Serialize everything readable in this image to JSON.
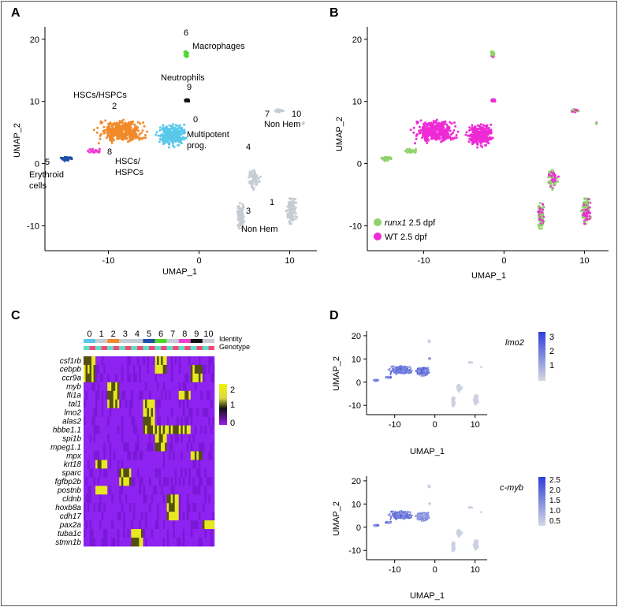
{
  "panels": {
    "a": {
      "letter": "A"
    },
    "b": {
      "letter": "B"
    },
    "c": {
      "letter": "C"
    },
    "d": {
      "letter": "D"
    }
  },
  "colors": {
    "hsc": "#f28a2a",
    "multipotent": "#5ac8ea",
    "neutrophil": "#111111",
    "macrophage": "#4fd82a",
    "erythroid": "#1f4fa8",
    "hspc8": "#ee3fd0",
    "nonhem": "#c5ccd4",
    "runx1": "#8fd36a",
    "wt": "#ee2ad6",
    "feature_high": "#2e3fd8",
    "feature_low": "#d4d8e4"
  },
  "annotations_a": {
    "c6": "6",
    "macrophages": "Macrophages",
    "neutrophils": "Neutrophils",
    "c9": "9",
    "hscs_hspcs": "HSCs/HSPCs",
    "c2": "2",
    "c0": "0",
    "multipotent_1": "Multipotent",
    "multipotent_2": "prog.",
    "c7": "7",
    "c10": "10",
    "nonhem_top": "Non Hem",
    "c4": "4",
    "c5": "5",
    "erythroid_1": "Erythroid",
    "erythroid_2": "cells",
    "c8": "8",
    "hspcs8_1": "HSCs/",
    "hspcs8_2": "HSPCs",
    "c1": "1",
    "c3": "3",
    "nonhem_bottom": "Non Hem"
  },
  "legend_b": [
    {
      "italic": "runx1",
      "rest": " 2.5 dpf",
      "color": "#8fd36a"
    },
    {
      "italic": "",
      "rest": "WT 2.5 dpf",
      "color": "#ee2ad6"
    }
  ],
  "heatmap": {
    "clusters": [
      "0",
      "1",
      "2",
      "3",
      "4",
      "5",
      "6",
      "7",
      "8",
      "9",
      "10"
    ],
    "identity_label": "Identity",
    "genotype_label": "Genotype",
    "genes": [
      "csf1rb",
      "cebpb",
      "ccr9a",
      "myb",
      "fli1a",
      "tal1",
      "lmo2",
      "alas2",
      "hbbe1.1",
      "spi1b",
      "mpeg1.1",
      "mpx",
      "krt18",
      "sparc",
      "fgfbp2b",
      "postnb",
      "cldnb",
      "hoxb8a",
      "cdh17",
      "pax2a",
      "tuba1c",
      "stmn1b"
    ],
    "scale_ticks": [
      "2",
      "1",
      "0"
    ]
  },
  "panel_d": {
    "top_gene": "lmo2",
    "top_ticks": [
      "3",
      "2",
      "1"
    ],
    "bottom_gene": "c-myb",
    "bottom_ticks": [
      "2.5",
      "2.0",
      "1.5",
      "1.0",
      "0.5"
    ]
  },
  "chart_data": [
    {
      "id": "A",
      "type": "scatter",
      "title": "",
      "xlabel": "UMAP_1",
      "ylabel": "UMAP_2",
      "xlim": [
        -17,
        13
      ],
      "ylim": [
        -14,
        22
      ],
      "xticks": [
        "-10",
        "0",
        "10"
      ],
      "yticks": [
        "20",
        "10",
        "0",
        "-10"
      ],
      "clusters": [
        {
          "id": "0",
          "label": "Multipotent prog.",
          "center": [
            -2.5,
            5.5
          ]
        },
        {
          "id": "1",
          "label": "Non Hem",
          "center": [
            10,
            -8
          ]
        },
        {
          "id": "2",
          "label": "HSCs/HSPCs",
          "center": [
            -8,
            5
          ]
        },
        {
          "id": "3",
          "label": "Non Hem",
          "center": [
            5,
            -8
          ]
        },
        {
          "id": "4",
          "label": "",
          "center": [
            6,
            -2
          ]
        },
        {
          "id": "5",
          "label": "Erythroid cells",
          "center": [
            -14.5,
            0.8
          ]
        },
        {
          "id": "6",
          "label": "Macrophages",
          "center": [
            -1.5,
            17.5
          ]
        },
        {
          "id": "7",
          "label": "",
          "center": [
            8,
            8.5
          ]
        },
        {
          "id": "8",
          "label": "HSCs/HSPCs",
          "center": [
            -11,
            2
          ]
        },
        {
          "id": "9",
          "label": "Neutrophils",
          "center": [
            -1.3,
            10
          ]
        },
        {
          "id": "10",
          "label": "",
          "center": [
            11.5,
            6.5
          ]
        }
      ]
    },
    {
      "id": "B",
      "type": "scatter",
      "xlabel": "UMAP_1",
      "ylabel": "UMAP_2",
      "xlim": [
        -17,
        13
      ],
      "ylim": [
        -14,
        22
      ],
      "xticks": [
        "-10",
        "0",
        "10"
      ],
      "yticks": [
        "20",
        "10",
        "0",
        "-10"
      ],
      "series": [
        {
          "name": "runx1 2.5 dpf"
        },
        {
          "name": "WT 2.5 dpf"
        }
      ]
    },
    {
      "id": "C",
      "type": "heatmap",
      "colorbar_ticks": [
        2,
        1,
        0
      ]
    },
    {
      "id": "D-lmo2",
      "type": "scatter",
      "xlabel": "UMAP_1",
      "ylabel": "UMAP_2",
      "xticks": [
        "-10",
        "0",
        "10"
      ],
      "yticks": [
        "20",
        "10",
        "0",
        "-10"
      ],
      "colorbar_ticks": [
        3,
        2,
        1
      ]
    },
    {
      "id": "D-cmyb",
      "type": "scatter",
      "xlabel": "UMAP_1",
      "ylabel": "UMAP_2",
      "xticks": [
        "-10",
        "0",
        "10"
      ],
      "yticks": [
        "20",
        "10",
        "0",
        "-10"
      ],
      "colorbar_ticks": [
        2.5,
        2.0,
        1.5,
        1.0,
        0.5
      ]
    }
  ]
}
